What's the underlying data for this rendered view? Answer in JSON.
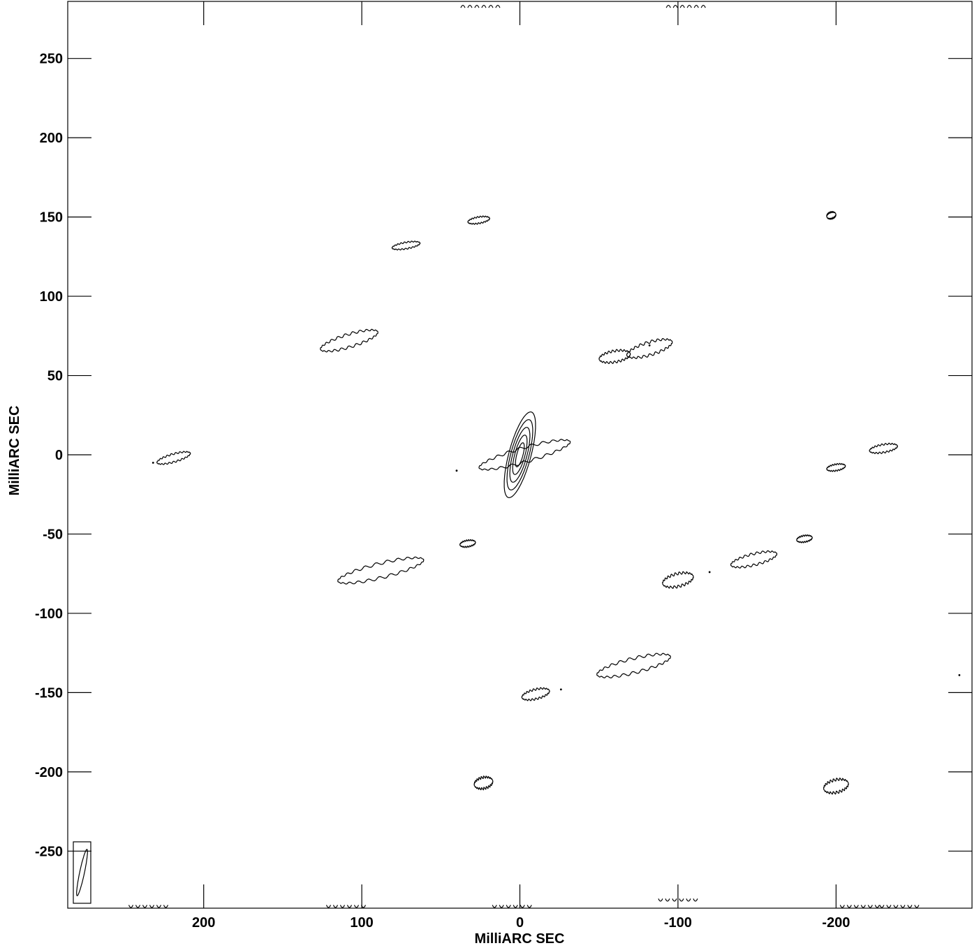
{
  "chart_data": {
    "type": "contour",
    "title": "",
    "xlabel": "MilliARC SEC",
    "ylabel": "MilliARC SEC",
    "xlim": [
      286,
      -286
    ],
    "ylim": [
      -286,
      286
    ],
    "x_ticks": [
      200,
      100,
      0,
      -100,
      -200
    ],
    "y_ticks": [
      250,
      200,
      150,
      100,
      50,
      0,
      -50,
      -100,
      -150,
      -200,
      -250
    ],
    "x_tick_labels": [
      "200",
      "100",
      "0",
      "-100",
      "-200"
    ],
    "y_tick_labels": [
      "250",
      "200",
      "150",
      "100",
      "50",
      "0",
      "-50",
      "-100",
      "-150",
      "-200",
      "-250"
    ],
    "grid": false,
    "central_source": {
      "x": 0,
      "y": 0,
      "levels": 5,
      "major_semi_axis": 28,
      "minor_semi_axis": 7,
      "position_angle_deg": 15
    },
    "features": [
      {
        "x": -3,
        "y": 0,
        "length": 60,
        "width": 9,
        "angle_deg": 16
      },
      {
        "x": 108,
        "y": 72,
        "length": 38,
        "width": 8,
        "angle_deg": 17
      },
      {
        "x": -82,
        "y": 67,
        "length": 30,
        "width": 8,
        "angle_deg": 17
      },
      {
        "x": -60,
        "y": 62,
        "length": 20,
        "width": 7,
        "angle_deg": 10
      },
      {
        "x": 219,
        "y": -2,
        "length": 22,
        "width": 5,
        "angle_deg": 16
      },
      {
        "x": 88,
        "y": -73,
        "length": 56,
        "width": 9,
        "angle_deg": 14
      },
      {
        "x": -100,
        "y": -79,
        "length": 20,
        "width": 8,
        "angle_deg": 14
      },
      {
        "x": -148,
        "y": -66,
        "length": 30,
        "width": 7,
        "angle_deg": 14
      },
      {
        "x": -72,
        "y": -133,
        "length": 48,
        "width": 9,
        "angle_deg": 14
      },
      {
        "x": -10,
        "y": -151,
        "length": 18,
        "width": 6,
        "angle_deg": 14
      },
      {
        "x": 23,
        "y": -207,
        "length": 12,
        "width": 7,
        "angle_deg": 14
      },
      {
        "x": -200,
        "y": -209,
        "length": 16,
        "width": 8,
        "angle_deg": 14
      },
      {
        "x": 33,
        "y": -56,
        "length": 10,
        "width": 4,
        "angle_deg": 10
      },
      {
        "x": -180,
        "y": -53,
        "length": 10,
        "width": 4,
        "angle_deg": 10
      },
      {
        "x": 26,
        "y": 148,
        "length": 14,
        "width": 4,
        "angle_deg": 10
      },
      {
        "x": 72,
        "y": 132,
        "length": 18,
        "width": 4,
        "angle_deg": 10
      },
      {
        "x": -197,
        "y": 151,
        "length": 6,
        "width": 4,
        "angle_deg": 20
      },
      {
        "x": -200,
        "y": -8,
        "length": 12,
        "width": 4,
        "angle_deg": 10
      },
      {
        "x": -230,
        "y": 4,
        "length": 18,
        "width": 5,
        "angle_deg": 10
      }
    ],
    "dots": [
      {
        "x": 40,
        "y": -10
      },
      {
        "x": -26,
        "y": -148
      },
      {
        "x": -82,
        "y": 69
      },
      {
        "x": -120,
        "y": -74
      },
      {
        "x": -278,
        "y": -139
      },
      {
        "x": 232,
        "y": -5
      }
    ],
    "edge_fragments": [
      {
        "x": 25,
        "y": 282
      },
      {
        "x": -105,
        "y": 282
      },
      {
        "x": 235,
        "y": -284
      },
      {
        "x": 110,
        "y": -284
      },
      {
        "x": 5,
        "y": -284
      },
      {
        "x": -100,
        "y": -280
      },
      {
        "x": -215,
        "y": -284
      },
      {
        "x": -240,
        "y": -284
      }
    ],
    "beam": {
      "major_semi_axis": 15,
      "minor_semi_axis": 1.5,
      "position_angle_deg": 12
    }
  }
}
